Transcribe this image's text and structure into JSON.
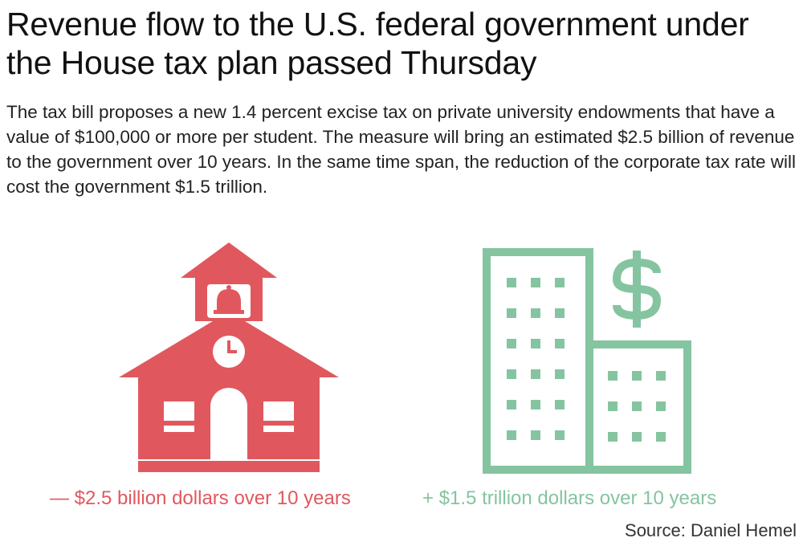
{
  "title": "Revenue flow to the U.S. federal government under the House tax plan passed Thursday",
  "description": "The tax bill proposes a new 1.4 percent excise tax on private university endowments that have a value of $100,000 or more per student. The measure will bring an estimated $2.5 billion of revenue to the government over 10 years. In the same time span, the reduction of the corporate tax rate will cost the government $1.5 trillion.",
  "left_caption": "— $2.5 billion dollars over 10 years",
  "right_caption": "+ $1.5 trillion dollars over 10 years",
  "source": "Source: Daniel Hemel",
  "icons": {
    "left": "schoolhouse-icon",
    "right": "office-building-dollar-icon"
  },
  "colors": {
    "red": "#e0585e",
    "green": "#85c4a0",
    "text": "#1c1c1c"
  }
}
